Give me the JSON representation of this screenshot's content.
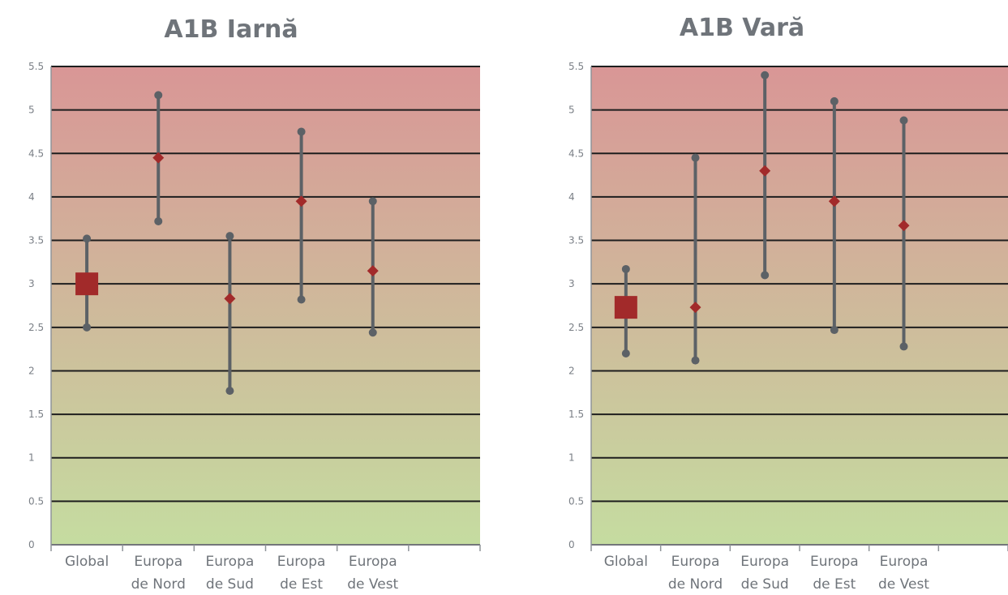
{
  "chart_data": [
    {
      "type": "scatter",
      "title": "A1B  Iarnă",
      "xlabel": "",
      "ylabel": "",
      "ylim": [
        0,
        5.5
      ],
      "yticks": [
        "0",
        "0.5",
        "1",
        "1.5",
        "2",
        "2.5",
        "3",
        "3.5",
        "4",
        "4.5",
        "5",
        "5.5"
      ],
      "grid": true,
      "categories": [
        {
          "line1": "Global",
          "line2": ""
        },
        {
          "line1": "Europa",
          "line2": "de Nord"
        },
        {
          "line1": "Europa",
          "line2": "de Sud"
        },
        {
          "line1": "Europa",
          "line2": "de Est"
        },
        {
          "line1": "Europa",
          "line2": "de Vest"
        }
      ],
      "points": [
        {
          "value": 3.0,
          "low": 2.5,
          "high": 3.52,
          "marker": "square"
        },
        {
          "value": 4.45,
          "low": 3.72,
          "high": 5.17,
          "marker": "diamond"
        },
        {
          "value": 2.83,
          "low": 1.77,
          "high": 3.55,
          "marker": "diamond"
        },
        {
          "value": 3.95,
          "low": 2.82,
          "high": 4.75,
          "marker": "diamond"
        },
        {
          "value": 3.15,
          "low": 2.44,
          "high": 3.95,
          "marker": "diamond"
        }
      ],
      "colors": {
        "marker": "#a22a2a",
        "whisker": "#5c6166",
        "grid": "#1e1e1e",
        "top": "#d99696",
        "bottom": "#c5dca0"
      }
    },
    {
      "type": "scatter",
      "title": "A1B Vară",
      "xlabel": "",
      "ylabel": "",
      "ylim": [
        0,
        5.5
      ],
      "yticks": [
        "0",
        "0.5",
        "1",
        "1.5",
        "2",
        "2.5",
        "3",
        "3.5",
        "4",
        "4.5",
        "5",
        "5.5"
      ],
      "grid": true,
      "categories": [
        {
          "line1": "Global",
          "line2": ""
        },
        {
          "line1": "Europa",
          "line2": "de Nord"
        },
        {
          "line1": "Europa",
          "line2": "de Sud"
        },
        {
          "line1": "Europa",
          "line2": "de Est"
        },
        {
          "line1": "Europa",
          "line2": "de Vest"
        }
      ],
      "points": [
        {
          "value": 2.73,
          "low": 2.2,
          "high": 3.17,
          "marker": "square"
        },
        {
          "value": 2.73,
          "low": 2.12,
          "high": 4.45,
          "marker": "diamond"
        },
        {
          "value": 4.3,
          "low": 3.1,
          "high": 5.4,
          "marker": "diamond"
        },
        {
          "value": 3.95,
          "low": 2.47,
          "high": 5.1,
          "marker": "diamond"
        },
        {
          "value": 3.67,
          "low": 2.28,
          "high": 4.88,
          "marker": "diamond"
        }
      ],
      "colors": {
        "marker": "#a22a2a",
        "whisker": "#5c6166",
        "grid": "#1e1e1e",
        "top": "#d99696",
        "bottom": "#c5dca0"
      }
    }
  ]
}
